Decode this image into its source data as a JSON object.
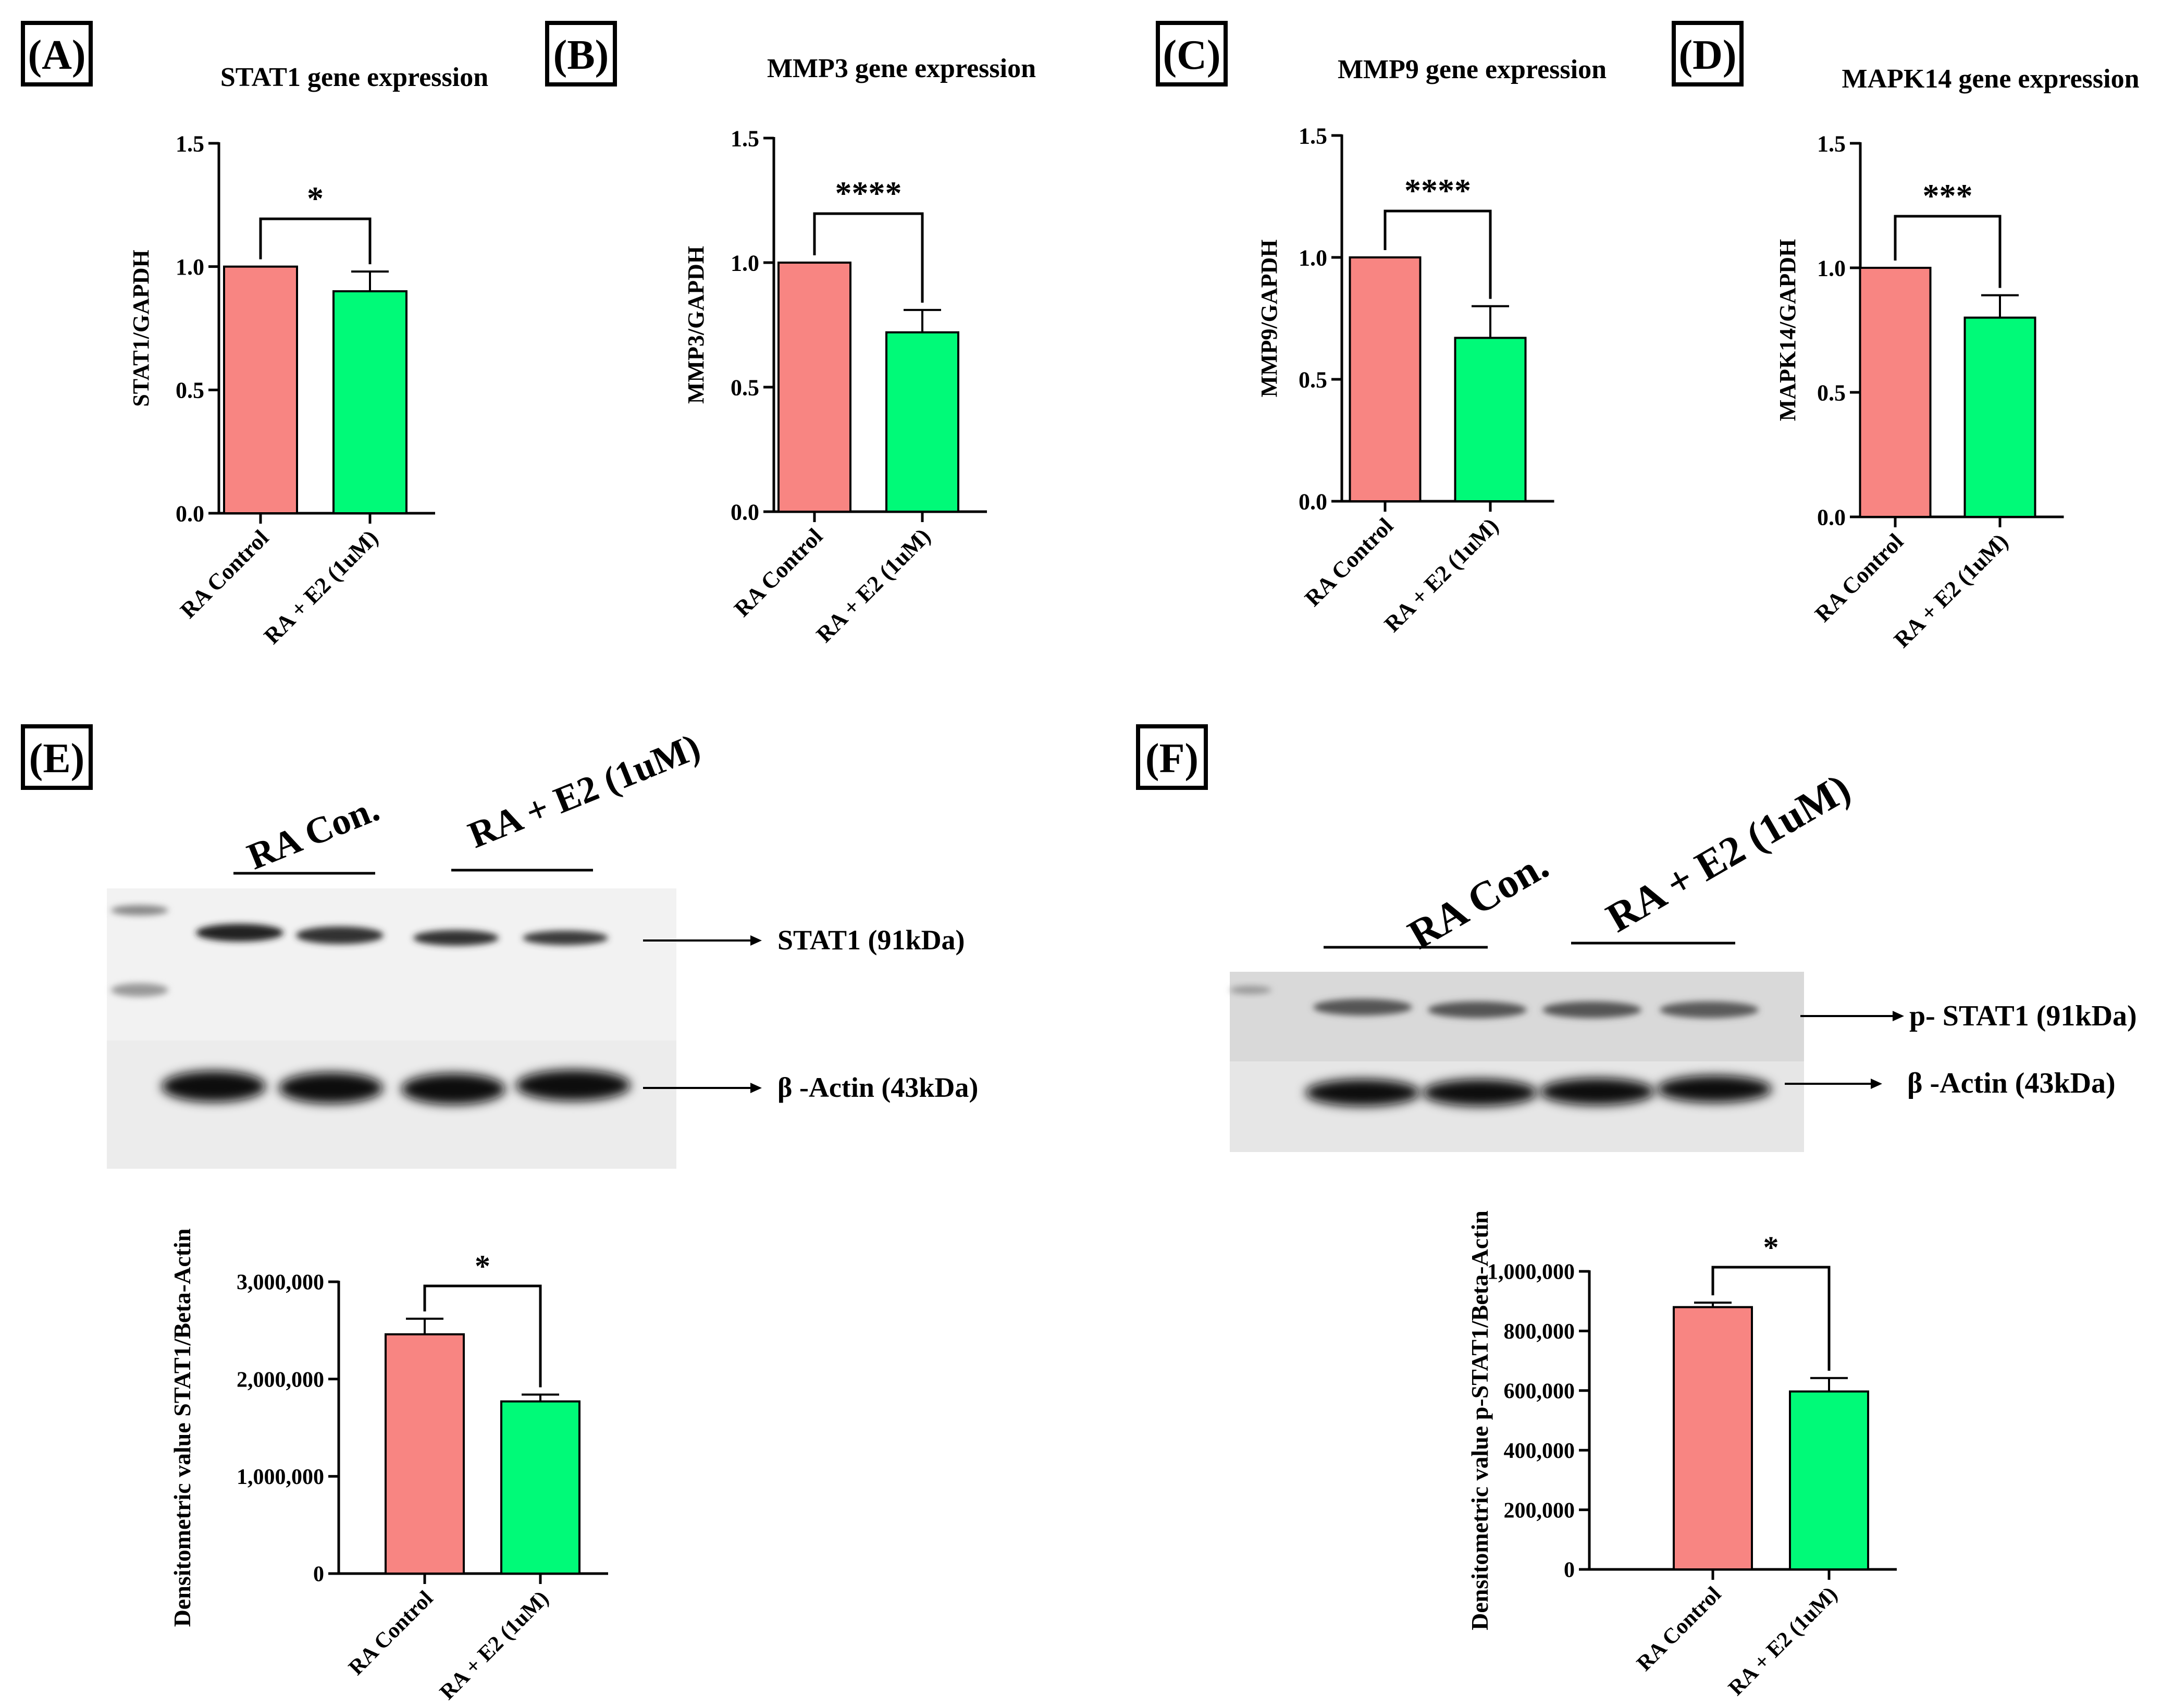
{
  "colors": {
    "control": "#f88582",
    "treated": "#00fa78",
    "axis": "#000000"
  },
  "panel_labels": [
    "(A)",
    "(B)",
    "(C)",
    "(D)",
    "(E)",
    "(F)"
  ],
  "chart_data": [
    {
      "panel": "(A)",
      "type": "bar",
      "title": "STAT1 gene expression",
      "xlabel": "",
      "ylabel": "STAT1/GAPDH",
      "categories": [
        "RA Control",
        "RA + E2 (1uM)"
      ],
      "values": [
        1.0,
        0.9
      ],
      "errors": [
        0,
        0.08
      ],
      "ylim": [
        0,
        1.5
      ],
      "yticks": [
        "0.0",
        "0.5",
        "1.0",
        "1.5"
      ],
      "ytick_values": [
        0,
        0.5,
        1.0,
        1.5
      ],
      "significance": "*",
      "legend": "none",
      "grid": false
    },
    {
      "panel": "(B)",
      "type": "bar",
      "title": "MMP3 gene expression",
      "xlabel": "",
      "ylabel": "MMP3/GAPDH",
      "categories": [
        "RA Control",
        "RA + E2 (1uM)"
      ],
      "values": [
        1.0,
        0.72
      ],
      "errors": [
        0,
        0.09
      ],
      "ylim": [
        0,
        1.5
      ],
      "yticks": [
        "0.0",
        "0.5",
        "1.0",
        "1.5"
      ],
      "ytick_values": [
        0,
        0.5,
        1.0,
        1.5
      ],
      "significance": "****",
      "legend": "none",
      "grid": false
    },
    {
      "panel": "(C)",
      "type": "bar",
      "title": "MMP9 gene expression",
      "xlabel": "",
      "ylabel": "MMP9/GAPDH",
      "categories": [
        "RA Control",
        "RA + E2 (1uM)"
      ],
      "values": [
        1.0,
        0.67
      ],
      "errors": [
        0,
        0.13
      ],
      "ylim": [
        0,
        1.5
      ],
      "yticks": [
        "0.0",
        "0.5",
        "1.0",
        "1.5"
      ],
      "ytick_values": [
        0,
        0.5,
        1.0,
        1.5
      ],
      "significance": "****",
      "legend": "none",
      "grid": false
    },
    {
      "panel": "(D)",
      "type": "bar",
      "title": "MAPK14 gene expression",
      "xlabel": "",
      "ylabel": "MAPK14/GAPDH",
      "categories": [
        "RA Control",
        "RA + E2 (1uM)"
      ],
      "values": [
        1.0,
        0.8
      ],
      "errors": [
        0,
        0.09
      ],
      "ylim": [
        0,
        1.5
      ],
      "yticks": [
        "0.0",
        "0.5",
        "1.0",
        "1.5"
      ],
      "ytick_values": [
        0,
        0.5,
        1.0,
        1.5
      ],
      "significance": "***",
      "legend": "none",
      "grid": false
    },
    {
      "panel": "(E)",
      "type": "bar",
      "title": "",
      "xlabel": "",
      "ylabel": "Densitometric value STAT1/Beta-Actin",
      "categories": [
        "RA Control",
        "RA + E2 (1uM)"
      ],
      "values": [
        2460000,
        1770000
      ],
      "errors": [
        160000,
        70000
      ],
      "ylim": [
        0,
        3000000
      ],
      "yticks": [
        "0",
        "1,000,000",
        "2,000,000",
        "3,000,000"
      ],
      "ytick_values": [
        0,
        1000000,
        2000000,
        3000000
      ],
      "significance": "*",
      "legend": "none",
      "grid": false
    },
    {
      "panel": "(F)",
      "type": "bar",
      "title": "",
      "xlabel": "",
      "ylabel": "Densitometric value p-STAT1/Beta-Actin",
      "categories": [
        "RA Control",
        "RA + E2 (1uM)"
      ],
      "values": [
        880000,
        597000
      ],
      "errors": [
        15000,
        45000
      ],
      "ylim": [
        0,
        1000000
      ],
      "yticks": [
        "0",
        "200,000",
        "400,000",
        "600,000",
        "800,000",
        "1,000,000"
      ],
      "ytick_values": [
        0,
        200000,
        400000,
        600000,
        800000,
        1000000
      ],
      "significance": "*",
      "legend": "none",
      "grid": false
    }
  ],
  "blots": [
    {
      "panel": "(E)",
      "groups": [
        "RA Con.",
        "RA + E2 (1uM)"
      ],
      "bands": [
        "STAT1 (91kDa)",
        "β -Actin (43kDa)"
      ]
    },
    {
      "panel": "(F)",
      "groups": [
        "RA Con.",
        "RA + E2 (1uM)"
      ],
      "bands": [
        "p- STAT1 (91kDa)",
        "β -Actin (43kDa)"
      ]
    }
  ]
}
